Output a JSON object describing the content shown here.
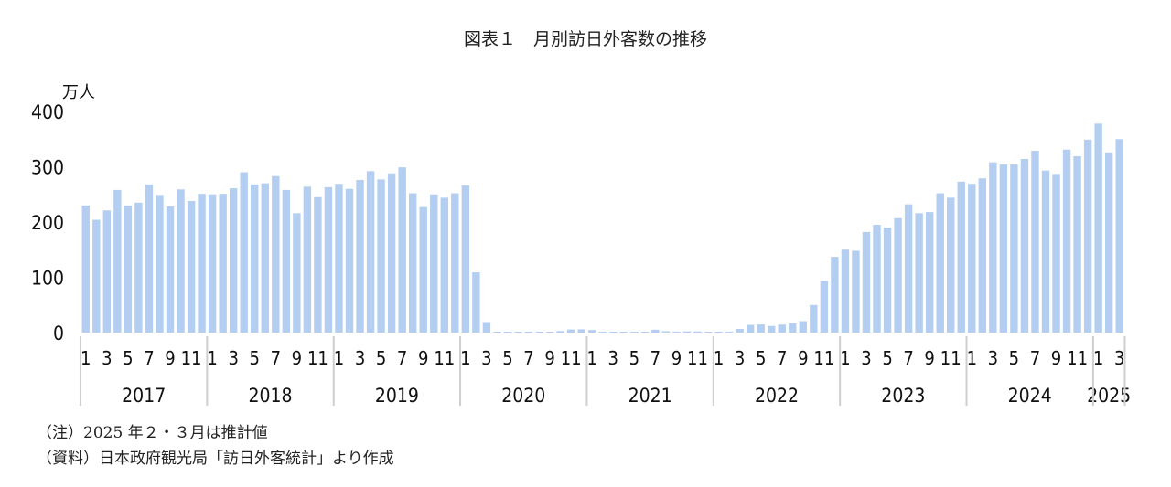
{
  "chart_data": {
    "type": "bar",
    "title": "図表１　月別訪日外客数の推移",
    "ylabel": "万人",
    "ylim": [
      0,
      400
    ],
    "yticks": [
      0,
      100,
      200,
      300,
      400
    ],
    "month_tick_labels": [
      "1",
      "3",
      "5",
      "7",
      "9",
      "11"
    ],
    "years": [
      {
        "label": "2017",
        "values": [
          230,
          204,
          221,
          258,
          230,
          235,
          268,
          249,
          228,
          259,
          238,
          251
        ]
      },
      {
        "label": "2018",
        "values": [
          250,
          251,
          261,
          290,
          268,
          270,
          283,
          258,
          216,
          264,
          245,
          263
        ]
      },
      {
        "label": "2019",
        "values": [
          269,
          260,
          276,
          292,
          277,
          288,
          299,
          252,
          227,
          250,
          244,
          252
        ]
      },
      {
        "label": "2020",
        "values": [
          266,
          109,
          19,
          0.3,
          0.2,
          0.3,
          0.4,
          0.9,
          1.4,
          2.8,
          5.6,
          5.9
        ]
      },
      {
        "label": "2021",
        "values": [
          4.6,
          0.7,
          1.2,
          1.1,
          1.0,
          1.0,
          5.2,
          2.6,
          1.8,
          2.2,
          2.1,
          1.2
        ]
      },
      {
        "label": "2022",
        "values": [
          1.7,
          1.7,
          6.6,
          13.9,
          14.7,
          12.0,
          14.5,
          16.9,
          20.7,
          49.9,
          93.5,
          137
        ]
      },
      {
        "label": "2023",
        "values": [
          150,
          148,
          182,
          195,
          190,
          207,
          232,
          216,
          218,
          252,
          244,
          273
        ]
      },
      {
        "label": "2024",
        "values": [
          269,
          279,
          308,
          304,
          304,
          314,
          329,
          293,
          287,
          331,
          319,
          349
        ]
      },
      {
        "label": "2025",
        "values": [
          378,
          326,
          350
        ]
      }
    ],
    "bar_color": "#b3cef0",
    "grid": false,
    "legend": "none"
  },
  "notes": {
    "note1": "（注）2025 年２・３月は推計値",
    "note2": "（資料）日本政府観光局「訪日外客統計」より作成"
  }
}
